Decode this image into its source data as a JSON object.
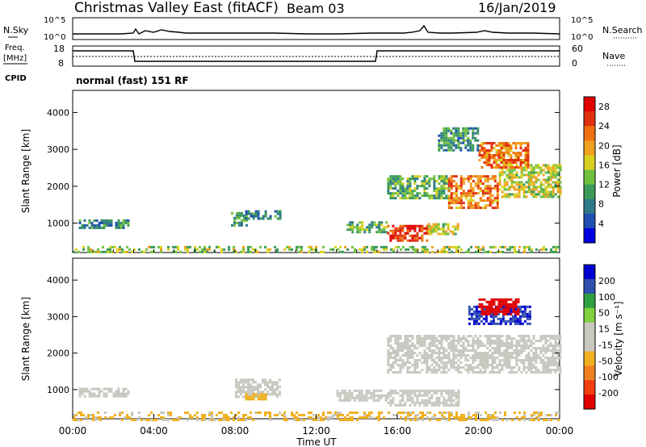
{
  "header": {
    "title": "Christmas Valley East (fitACF)",
    "beam": "Beam 03",
    "date": "16/Jan/2019"
  },
  "sky_panel": {
    "left_label": "N.Sky",
    "left_ticks": [
      "10^5",
      "10^0"
    ],
    "right_ticks": [
      "10^5",
      "10^0"
    ],
    "right_label": "N.Search"
  },
  "freq_panel": {
    "left_label_1": "Freq.",
    "left_label_2": "[MHz]",
    "left_ticks": [
      "18",
      "8"
    ],
    "right_ticks": [
      "60",
      "0"
    ],
    "right_label": "Nave",
    "cpid_label": "CPID",
    "cpid_value": "normal (fast) 151 RF"
  },
  "colors": {
    "power_scale": [
      "#0000e0",
      "#1f4fb0",
      "#2f7a8a",
      "#3a9a5a",
      "#70c040",
      "#d8d020",
      "#f0a020",
      "#f07010",
      "#e03010",
      "#e00000"
    ],
    "velocity_scale": [
      "#0000d0",
      "#3050b0",
      "#30a040",
      "#80d040",
      "#c8c8c0",
      "#c8c8c0",
      "#f0b020",
      "#f08020",
      "#f04010",
      "#e00000"
    ]
  },
  "chart_data": [
    {
      "type": "heatmap",
      "name": "power",
      "ylabel": "Slant Range [km]",
      "yticks": [
        "1000",
        "2000",
        "3000",
        "4000"
      ],
      "ylim": [
        200,
        4600
      ],
      "xlim": [
        0,
        24
      ],
      "colorbar_label": "Power [dB]",
      "colorbar_ticks": [
        "4",
        "8",
        "12",
        "16",
        "20",
        "24",
        "28"
      ],
      "colorbar_range": [
        0,
        30
      ],
      "features": [
        {
          "t0": 0.3,
          "t1": 2.8,
          "r0": 850,
          "r1": 1100,
          "value": 8
        },
        {
          "t0": 7.8,
          "t1": 8.6,
          "r0": 950,
          "r1": 1300,
          "value": 10
        },
        {
          "t0": 8.5,
          "t1": 10.2,
          "r0": 1100,
          "r1": 1350,
          "value": 8
        },
        {
          "t0": 13.5,
          "t1": 15.5,
          "r0": 750,
          "r1": 1050,
          "value": 12
        },
        {
          "t0": 15.5,
          "t1": 17.5,
          "r0": 550,
          "r1": 950,
          "value": 26
        },
        {
          "t0": 17.5,
          "t1": 19.0,
          "r0": 700,
          "r1": 1000,
          "value": 16
        },
        {
          "t0": 15.5,
          "t1": 18.5,
          "r0": 1700,
          "r1": 2300,
          "value": 12
        },
        {
          "t0": 18.5,
          "t1": 21.0,
          "r0": 1400,
          "r1": 2300,
          "value": 22
        },
        {
          "t0": 21.0,
          "t1": 24.0,
          "r0": 1700,
          "r1": 2600,
          "value": 16
        },
        {
          "t0": 20.0,
          "t1": 22.5,
          "r0": 2500,
          "r1": 3200,
          "value": 22
        },
        {
          "t0": 18.0,
          "t1": 20.0,
          "r0": 3000,
          "r1": 3600,
          "value": 10
        },
        {
          "t0": 0.0,
          "t1": 24.0,
          "r0": 200,
          "r1": 380,
          "value": 14
        }
      ]
    },
    {
      "type": "heatmap",
      "name": "velocity",
      "ylabel": "Slant Range [km]",
      "yticks": [
        "1000",
        "2000",
        "3000",
        "4000"
      ],
      "ylim": [
        200,
        4600
      ],
      "xlim": [
        0,
        24
      ],
      "xticks": [
        "00:00",
        "04:00",
        "08:00",
        "12:00",
        "16:00",
        "20:00",
        "00:00"
      ],
      "xlabel": "Time UT",
      "colorbar_label": "Velocity [m s⁻¹]",
      "colorbar_ticks": [
        "200",
        "100",
        "50",
        "15",
        "-15",
        "-50",
        "-100",
        "-200"
      ],
      "colorbar_range": [
        -250,
        250
      ],
      "features": [
        {
          "t0": 0.3,
          "t1": 2.8,
          "r0": 800,
          "r1": 1050,
          "value": 30
        },
        {
          "t0": 8.0,
          "t1": 10.2,
          "r0": 800,
          "r1": 1300,
          "value": 30
        },
        {
          "t0": 8.5,
          "t1": 9.5,
          "r0": 750,
          "r1": 900,
          "value": -70
        },
        {
          "t0": 13.0,
          "t1": 15.5,
          "r0": 700,
          "r1": 1000,
          "value": 0
        },
        {
          "t0": 15.5,
          "t1": 19.0,
          "r0": 600,
          "r1": 1000,
          "value": 0
        },
        {
          "t0": 15.5,
          "t1": 24.0,
          "r0": 1500,
          "r1": 2500,
          "value": 0
        },
        {
          "t0": 19.5,
          "t1": 22.5,
          "r0": 2800,
          "r1": 3300,
          "value": 200
        },
        {
          "t0": 20.0,
          "t1": 22.0,
          "r0": 3100,
          "r1": 3500,
          "value": -220
        },
        {
          "t0": 0.0,
          "t1": 24.0,
          "r0": 200,
          "r1": 400,
          "value": -60
        }
      ]
    }
  ]
}
